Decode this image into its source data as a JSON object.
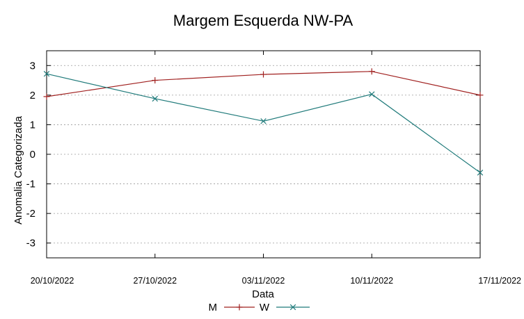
{
  "chart_data": {
    "type": "line",
    "title": "Margem Esquerda NW-PA",
    "xlabel": "Data",
    "ylabel": "Anomalia Categorizada",
    "categories": [
      "20/10/2022",
      "27/10/2022",
      "03/11/2022",
      "10/11/2022",
      "17/11/2022"
    ],
    "yticks": [
      "3",
      "2",
      "1",
      "0",
      "-1",
      "-2",
      "-3"
    ],
    "ylim": [
      -3.5,
      3.5
    ],
    "grid": true,
    "legend_position": "bottom",
    "series": [
      {
        "name": "M",
        "color": "#a0201f",
        "marker": "plus",
        "values": [
          1.95,
          2.5,
          2.7,
          2.8,
          2.0
        ]
      },
      {
        "name": "W",
        "color": "#1f7a7a",
        "marker": "cross",
        "values": [
          2.72,
          1.88,
          1.12,
          2.03,
          -0.62
        ]
      }
    ]
  }
}
